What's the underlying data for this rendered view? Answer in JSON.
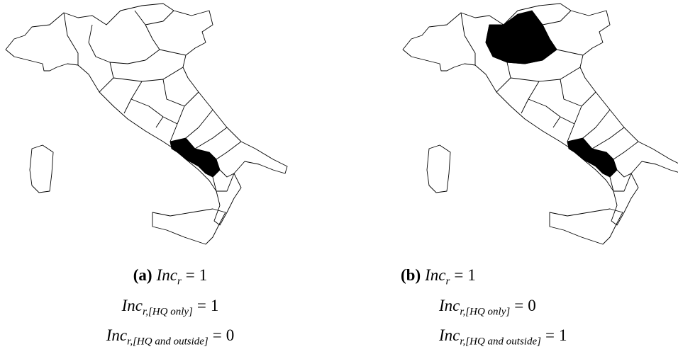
{
  "panels": [
    {
      "label": "(a)",
      "lines": [
        {
          "base": "Inc",
          "sub": "r",
          "relation": "=",
          "value": 1
        },
        {
          "base": "Inc",
          "sub": "r,[HQ only]",
          "relation": "=",
          "value": 1
        },
        {
          "base": "Inc",
          "sub": "r,[HQ and outside]",
          "relation": "=",
          "value": 0
        }
      ]
    },
    {
      "label": "(b)",
      "lines": [
        {
          "base": "Inc",
          "sub": "r",
          "relation": "=",
          "value": 1
        },
        {
          "base": "Inc",
          "sub": "r,[HQ only]",
          "relation": "=",
          "value": 0
        },
        {
          "base": "Inc",
          "sub": "r,[HQ and outside]",
          "relation": "=",
          "value": 1
        }
      ]
    }
  ]
}
